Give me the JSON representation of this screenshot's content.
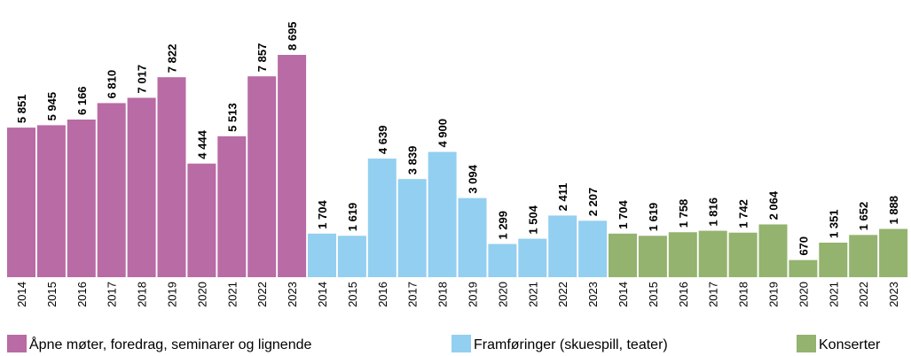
{
  "chart_data": {
    "type": "bar",
    "series": [
      {
        "name": "Åpne møter, foredrag, seminarer og lignende",
        "color": "#b86ba5",
        "categories": [
          "2014",
          "2015",
          "2016",
          "2017",
          "2018",
          "2019",
          "2020",
          "2021",
          "2022",
          "2023"
        ],
        "values": [
          5851,
          5945,
          6166,
          6810,
          7017,
          7822,
          4444,
          5513,
          7857,
          8695
        ],
        "value_labels": [
          "5 851",
          "5 945",
          "6 166",
          "6 810",
          "7 017",
          "7 822",
          "4 444",
          "5 513",
          "7 857",
          "8 695"
        ]
      },
      {
        "name": "Framføringer (skuespill, teater)",
        "color": "#93cff0",
        "categories": [
          "2014",
          "2015",
          "2016",
          "2017",
          "2018",
          "2019",
          "2020",
          "2021",
          "2022",
          "2023"
        ],
        "values": [
          1704,
          1619,
          4639,
          3839,
          4900,
          3094,
          1299,
          1504,
          2411,
          2207
        ],
        "value_labels": [
          "1 704",
          "1 619",
          "4 639",
          "3 839",
          "4 900",
          "3 094",
          "1 299",
          "1 504",
          "2 411",
          "2 207"
        ]
      },
      {
        "name": "Konserter",
        "color": "#93b36e",
        "categories": [
          "2014",
          "2015",
          "2016",
          "2017",
          "2018",
          "2019",
          "2020",
          "2021",
          "2022",
          "2023"
        ],
        "values": [
          1704,
          1619,
          1758,
          1816,
          1742,
          2064,
          670,
          1351,
          1652,
          1888
        ],
        "value_labels": [
          "1 704",
          "1 619",
          "1 758",
          "1 816",
          "1 742",
          "2 064",
          "670",
          "1 351",
          "1 652",
          "1 888"
        ]
      }
    ]
  }
}
